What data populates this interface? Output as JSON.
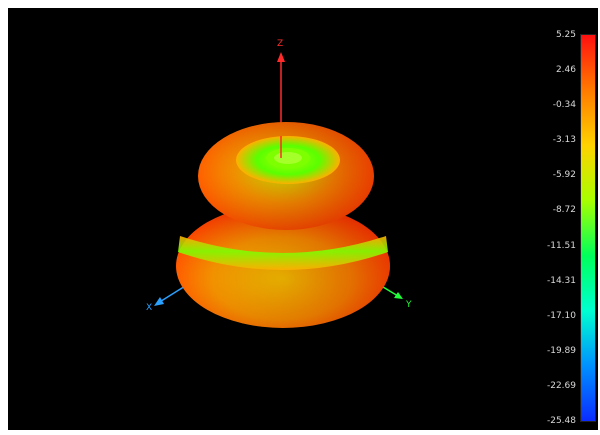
{
  "plot": {
    "axes": [
      {
        "name": "z-axis",
        "label": "Z",
        "color": "#ff2b2b"
      },
      {
        "name": "x-axis",
        "label": "X",
        "color": "#2aa0ff"
      },
      {
        "name": "y-axis",
        "label": "Y",
        "color": "#21ff3a"
      }
    ]
  },
  "colorbar": {
    "ticks": [
      "5.25",
      "2.46",
      "-0.34",
      "-3.13",
      "-5.92",
      "-8.72",
      "-11.51",
      "-14.31",
      "-17.10",
      "-19.89",
      "-22.69",
      "-25.48"
    ],
    "gradient_stops": [
      "#ff1010",
      "#ff7a00",
      "#ffd200",
      "#a8ff00",
      "#00ff5a",
      "#00ffd0",
      "#0090ff",
      "#0b2cff"
    ]
  }
}
